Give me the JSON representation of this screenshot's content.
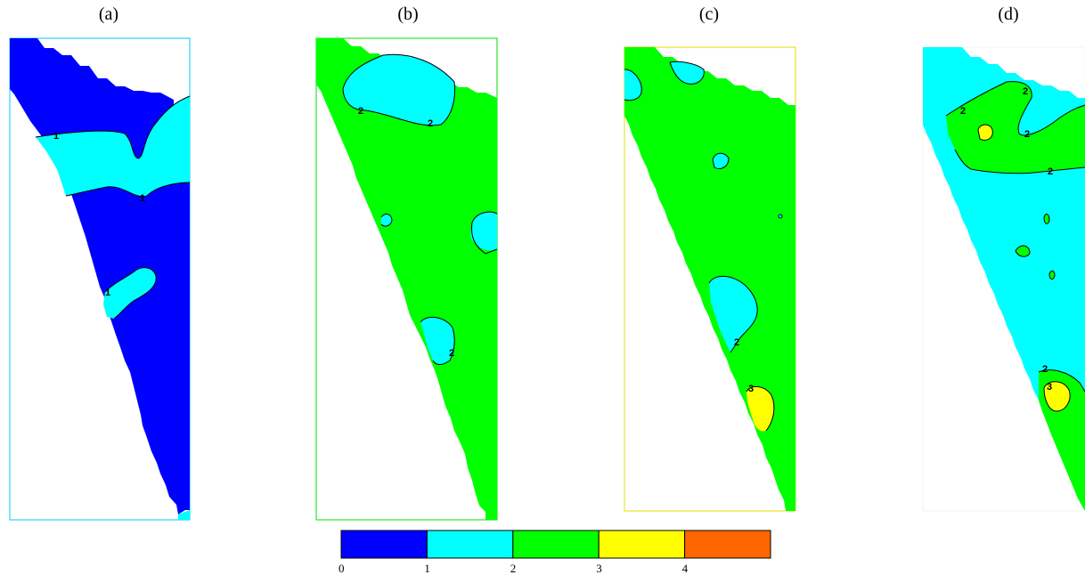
{
  "chart_data": {
    "type": "heatmap",
    "colorbar": {
      "ticks": [
        "0",
        "1",
        "2",
        "3",
        "4"
      ],
      "colors": [
        "#0000ff",
        "#00ffff",
        "#00ff00",
        "#ffff00",
        "#ff6600"
      ]
    },
    "panels": [
      {
        "label": "(a)",
        "contour_labels": [
          "1",
          "1",
          "1"
        ]
      },
      {
        "label": "(b)",
        "contour_labels": [
          "2",
          "2",
          "2"
        ]
      },
      {
        "label": "(c)",
        "contour_labels": [
          "2",
          "3"
        ]
      },
      {
        "label": "(d)",
        "contour_labels": [
          "2",
          "2",
          "2",
          "2",
          "2",
          "3"
        ]
      }
    ]
  }
}
